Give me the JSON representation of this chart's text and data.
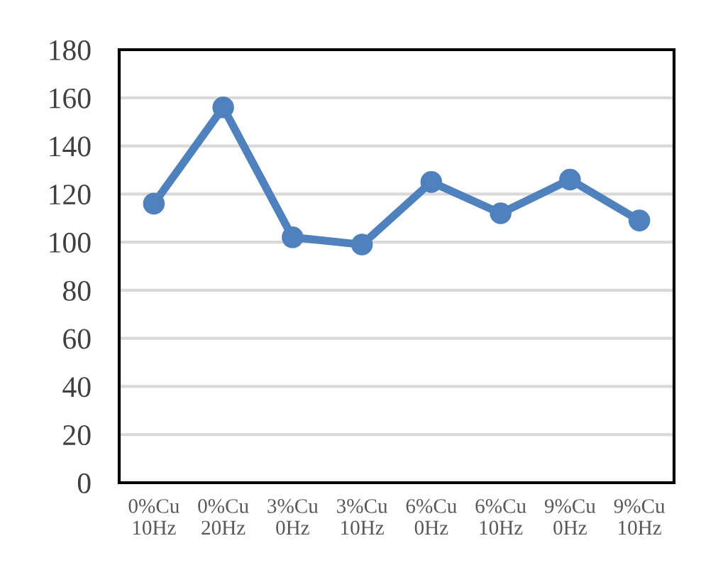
{
  "chart_data": {
    "type": "line",
    "categories": [
      "0%Cu\n10Hz",
      "0%Cu\n20Hz",
      "3%Cu\n0Hz",
      "3%Cu\n10Hz",
      "6%Cu\n0Hz",
      "6%Cu\n10Hz",
      "9%Cu\n0Hz",
      "9%Cu\n10Hz"
    ],
    "series": [
      {
        "color": "#4f81bd",
        "values": [
          116,
          156,
          102,
          99,
          125,
          112,
          126,
          109
        ]
      }
    ],
    "ylim": [
      0,
      180
    ],
    "yticks": [
      0,
      20,
      40,
      60,
      80,
      100,
      120,
      140,
      160,
      180
    ],
    "grid": "y",
    "marker": "circle",
    "line_style": "solid",
    "legend": false
  }
}
